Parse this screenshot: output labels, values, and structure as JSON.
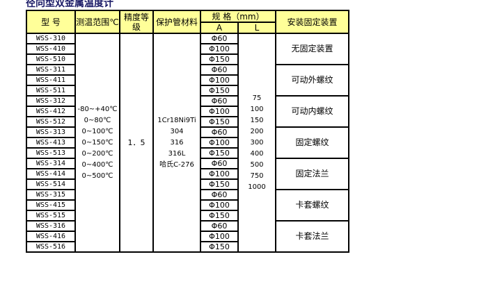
{
  "title": "径向型双金属温度计",
  "headers": {
    "model": "型 号",
    "range": "测温范围℃",
    "grade": "精度等级",
    "material": "保护管材料",
    "spec": "规 格（mm）",
    "a": "A",
    "l": "L",
    "mount": "安装固定装置"
  },
  "ranges": [
    "-80~+40℃",
    "0~80℃",
    "0~100℃",
    "0~150℃",
    "0~200℃",
    "0~400℃",
    "0~500℃"
  ],
  "grade": "1．5",
  "materials": [
    "1Cr18Ni9Ti",
    "304",
    "316",
    "316L",
    "哈氏C-276"
  ],
  "lengths": [
    "75",
    "100",
    "150",
    "200",
    "300",
    "400",
    "500",
    "750",
    "1000"
  ],
  "groups": [
    {
      "mount": "无固定装置",
      "rows": [
        {
          "model": "WSS-310",
          "a": "Φ60"
        },
        {
          "model": "WSS-410",
          "a": "Φ100"
        },
        {
          "model": "WSS-510",
          "a": "Φ150"
        }
      ]
    },
    {
      "mount": "可动外螺纹",
      "rows": [
        {
          "model": "WSS-311",
          "a": "Φ60"
        },
        {
          "model": "WSS-411",
          "a": "Φ100"
        },
        {
          "model": "WSS-511",
          "a": "Φ150"
        }
      ]
    },
    {
      "mount": "可动内螺纹",
      "rows": [
        {
          "model": "WSS-312",
          "a": "Φ60"
        },
        {
          "model": "WSS-412",
          "a": "Φ100"
        },
        {
          "model": "WSS-512",
          "a": "Φ150"
        }
      ]
    },
    {
      "mount": "固定螺纹",
      "rows": [
        {
          "model": "WSS-313",
          "a": "Φ60"
        },
        {
          "model": "WSS-413",
          "a": "Φ100"
        },
        {
          "model": "WSS-513",
          "a": "Φ150"
        }
      ]
    },
    {
      "mount": "固定法兰",
      "rows": [
        {
          "model": "WSS-314",
          "a": "Φ60"
        },
        {
          "model": "WSS-414",
          "a": "Φ100"
        },
        {
          "model": "WSS-514",
          "a": "Φ150"
        }
      ]
    },
    {
      "mount": "卡套螺纹",
      "rows": [
        {
          "model": "WSS-315",
          "a": "Φ60"
        },
        {
          "model": "WSS-415",
          "a": "Φ100"
        },
        {
          "model": "WSS-515",
          "a": "Φ150"
        }
      ]
    },
    {
      "mount": "卡套法兰",
      "rows": [
        {
          "model": "WSS-316",
          "a": "Φ60"
        },
        {
          "model": "WSS-416",
          "a": "Φ100"
        },
        {
          "model": "WSS-516",
          "a": "Φ150"
        }
      ]
    }
  ],
  "colors": {
    "header_bg": "#ffff99",
    "title": "#1a1a66"
  }
}
